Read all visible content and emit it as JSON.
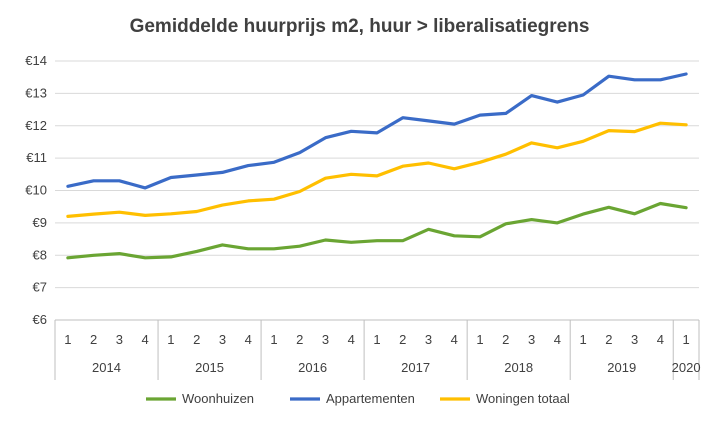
{
  "chart_data": {
    "type": "line",
    "title": "Gemiddelde huurprijs m2, huur > liberalisatiegrens",
    "xlabel": "",
    "ylabel": "",
    "ylim": [
      6,
      14
    ],
    "yticks": [
      "€6",
      "€7",
      "€8",
      "€9",
      "€10",
      "€11",
      "€12",
      "€13",
      "€14"
    ],
    "grid": true,
    "legend_position": "bottom",
    "categories": [
      "1",
      "2",
      "3",
      "4",
      "1",
      "2",
      "3",
      "4",
      "1",
      "2",
      "3",
      "4",
      "1",
      "2",
      "3",
      "4",
      "1",
      "2",
      "3",
      "4",
      "1",
      "2",
      "3",
      "4",
      "1"
    ],
    "years": [
      {
        "label": "2014",
        "span": 4
      },
      {
        "label": "2015",
        "span": 4
      },
      {
        "label": "2016",
        "span": 4
      },
      {
        "label": "2017",
        "span": 4
      },
      {
        "label": "2018",
        "span": 4
      },
      {
        "label": "2019",
        "span": 4
      },
      {
        "label": "2020",
        "span": 1
      }
    ],
    "series": [
      {
        "name": "Woonhuizen",
        "color": "#6aa533",
        "values": [
          7.92,
          8.0,
          8.05,
          7.92,
          7.95,
          8.12,
          8.32,
          8.2,
          8.2,
          8.28,
          8.47,
          8.4,
          8.45,
          8.45,
          8.8,
          8.6,
          8.57,
          8.97,
          9.1,
          9.0,
          9.27,
          9.48,
          9.28,
          9.6,
          9.47
        ]
      },
      {
        "name": "Appartementen",
        "color": "#3a6bc7",
        "values": [
          10.13,
          10.3,
          10.3,
          10.08,
          10.4,
          10.48,
          10.56,
          10.77,
          10.87,
          11.17,
          11.63,
          11.83,
          11.78,
          12.25,
          12.15,
          12.05,
          12.33,
          12.38,
          12.93,
          12.73,
          12.95,
          13.53,
          13.42,
          13.42,
          13.6
        ]
      },
      {
        "name": "Woningen totaal",
        "color": "#ffbf00",
        "values": [
          9.2,
          9.27,
          9.33,
          9.23,
          9.28,
          9.35,
          9.55,
          9.68,
          9.73,
          9.97,
          10.38,
          10.5,
          10.45,
          10.75,
          10.85,
          10.67,
          10.87,
          11.12,
          11.47,
          11.32,
          11.52,
          11.85,
          11.82,
          12.08,
          12.03
        ]
      }
    ]
  }
}
